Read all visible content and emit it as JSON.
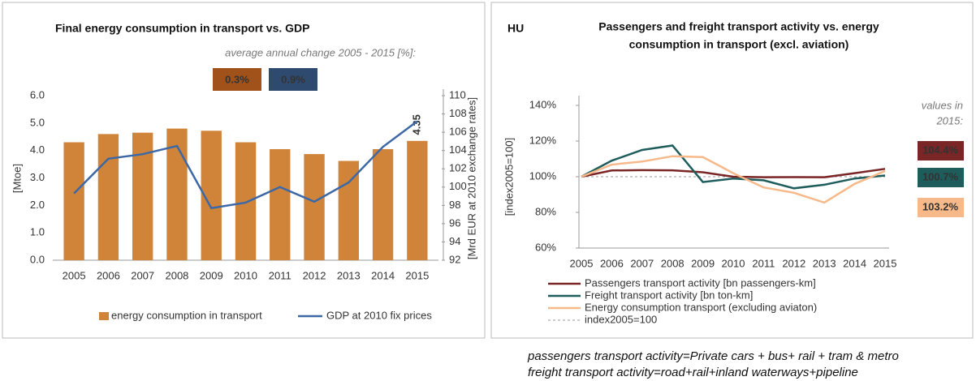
{
  "chart_data": [
    {
      "type": "bar_line",
      "title": "Final energy consumption in transport vs. GDP",
      "subtitle": "average annual change 2005 - 2015 [%]:",
      "y_label": "[Mtoe]",
      "y2_label": "[Mrd EUR at 2010 exchange rates]",
      "categories": [
        "2005",
        "2006",
        "2007",
        "2008",
        "2009",
        "2010",
        "2011",
        "2012",
        "2013",
        "2014",
        "2015"
      ],
      "series": [
        {
          "name": "energy consumption in transport",
          "kind": "bar",
          "color": "#d0843a",
          "annual_change": "0.3%",
          "box_color": "#a0521a",
          "values": [
            4.3,
            4.6,
            4.65,
            4.8,
            4.72,
            4.3,
            4.05,
            3.87,
            3.62,
            4.05,
            4.35
          ],
          "value_labels": [
            null,
            null,
            null,
            null,
            null,
            null,
            null,
            null,
            null,
            null,
            "4.35"
          ]
        },
        {
          "name": "GDP at 2010 fix prices",
          "kind": "line",
          "axis": "y2",
          "color": "#3d68a6",
          "annual_change": "0.9%",
          "box_color": "#2e4a6e",
          "values": [
            99.3,
            103.1,
            103.6,
            104.5,
            97.7,
            98.3,
            100.0,
            98.4,
            100.5,
            104.4,
            107.2
          ]
        }
      ],
      "ylim": [
        0,
        6
      ],
      "yticks": [
        {
          "value": 0,
          "label": "0.0"
        },
        {
          "value": 1,
          "label": "1.0"
        },
        {
          "value": 2,
          "label": "2.0"
        },
        {
          "value": 3,
          "label": "3.0"
        },
        {
          "value": 4,
          "label": "4.0"
        },
        {
          "value": 5,
          "label": "5.0"
        },
        {
          "value": 6,
          "label": "6.0"
        }
      ],
      "y2lim": [
        92,
        110
      ],
      "y2ticks": [
        92,
        94,
        96,
        98,
        100,
        102,
        104,
        106,
        108,
        110
      ]
    },
    {
      "type": "line",
      "region": "HU",
      "title": [
        "Passengers and freight transport activity vs. energy",
        "consumption in transport (excl. aviation)"
      ],
      "y_label": "[index2005=100]",
      "end_caption": [
        "values in",
        "2015:"
      ],
      "categories": [
        "2005",
        "2006",
        "2007",
        "2008",
        "2009",
        "2010",
        "2011",
        "2012",
        "2013",
        "2014",
        "2015"
      ],
      "series": [
        {
          "name": "Passengers transport activity [bn passengers-km]",
          "color": "#7b2626",
          "values": [
            100,
            103.5,
            103.7,
            103.6,
            102.5,
            100,
            99.7,
            99.8,
            99.7,
            102,
            104.4
          ],
          "end_label": "104.4%"
        },
        {
          "name": "Freight transport activity [bn ton-km]",
          "color": "#1f5c5c",
          "values": [
            100,
            109,
            115,
            117.5,
            97,
            99,
            98,
            93.5,
            95.5,
            99,
            100.7
          ],
          "end_label": "100.7%"
        },
        {
          "name": "Energy consumption transport (excluding aviaton)",
          "color": "#f7b98a",
          "values": [
            100,
            106.8,
            108.5,
            111.5,
            111,
            102,
            94,
            91,
            85.5,
            96,
            103.2
          ],
          "end_label": "103.2%"
        }
      ],
      "reference": {
        "name": "index2005=100",
        "value": 100,
        "color": "#999"
      },
      "ylim": [
        60,
        140
      ],
      "yticks": [
        {
          "value": 60,
          "label": "60%"
        },
        {
          "value": 80,
          "label": "80%"
        },
        {
          "value": 100,
          "label": "100%"
        },
        {
          "value": 120,
          "label": "120%"
        },
        {
          "value": 140,
          "label": "140%"
        }
      ]
    }
  ],
  "footnotes": [
    "passengers transport activity=Private cars + bus+ rail + tram & metro",
    "freight transport activity=road+rail+inland waterways+pipeline"
  ]
}
